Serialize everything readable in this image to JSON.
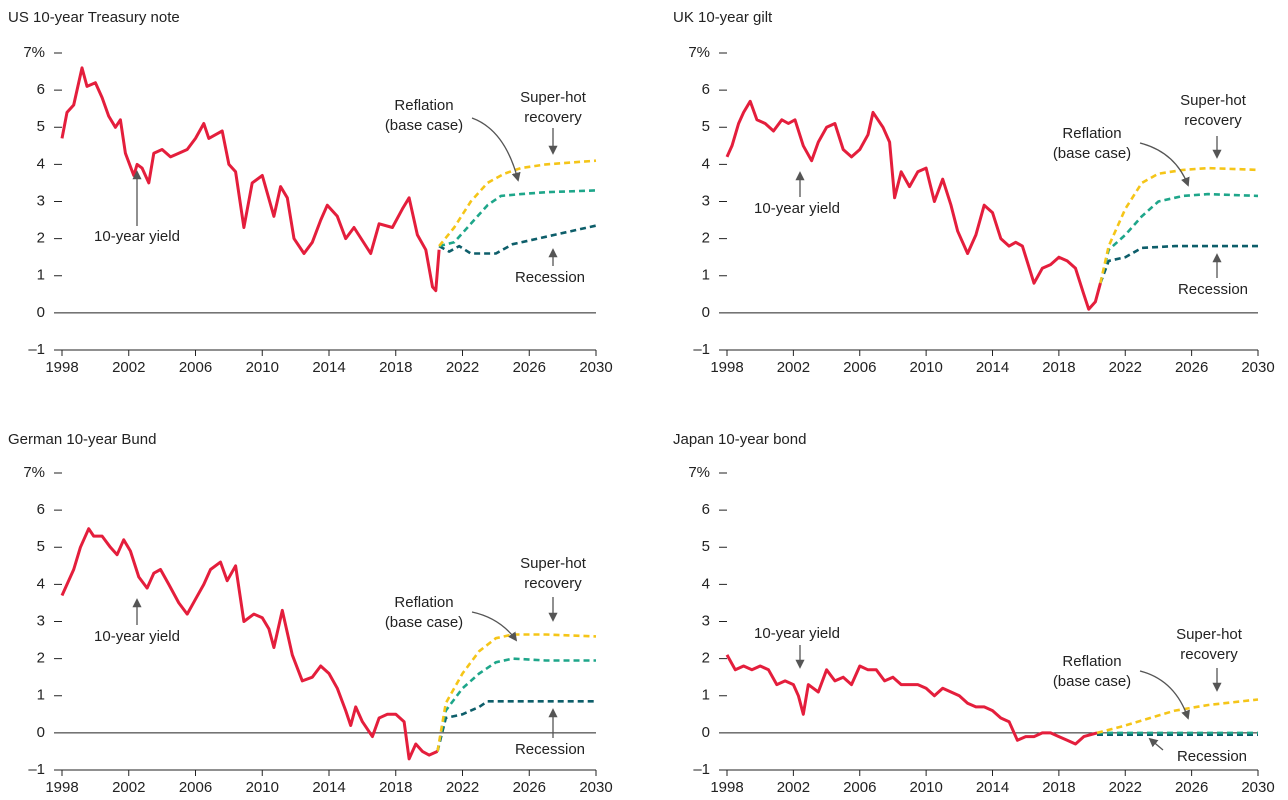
{
  "chart_data": [
    {
      "type": "line",
      "title": "US 10-year Treasury note",
      "xlim": [
        1998,
        2030
      ],
      "xticks": [
        1998,
        2002,
        2006,
        2010,
        2014,
        2018,
        2022,
        2026,
        2030
      ],
      "ylim": [
        -1,
        7
      ],
      "yticks": [
        {
          "value": -1,
          "label": "–1"
        },
        0,
        1,
        2,
        3,
        4,
        5,
        6,
        {
          "value": 7,
          "label": "7%"
        }
      ],
      "series": [
        {
          "color": "#e41e3c",
          "dashed": false,
          "x": [
            1998,
            1998.3,
            1998.7,
            1999.2,
            1999.5,
            2000,
            2000.4,
            2000.8,
            2001.2,
            2001.5,
            2001.8,
            2002.3,
            2002.5,
            2002.8,
            2003.2,
            2003.5,
            2004,
            2004.5,
            2005,
            2005.5,
            2006,
            2006.5,
            2006.8,
            2007.2,
            2007.6,
            2008,
            2008.4,
            2008.9,
            2009.4,
            2010,
            2010.7,
            2011.1,
            2011.5,
            2011.9,
            2012.5,
            2013,
            2013.5,
            2013.9,
            2014.5,
            2015,
            2015.5,
            2016.5,
            2017,
            2017.8,
            2018.4,
            2018.8,
            2019.3,
            2019.8,
            2020.2,
            2020.4,
            2020.6
          ],
          "values": [
            4.7,
            5.4,
            5.6,
            6.6,
            6.1,
            6.2,
            5.8,
            5.3,
            5.0,
            5.2,
            4.3,
            3.7,
            4.0,
            3.9,
            3.5,
            4.3,
            4.4,
            4.2,
            4.3,
            4.4,
            4.7,
            5.1,
            4.7,
            4.8,
            4.9,
            4.0,
            3.8,
            2.3,
            3.5,
            3.7,
            2.6,
            3.4,
            3.1,
            2.0,
            1.6,
            1.9,
            2.5,
            2.9,
            2.6,
            2.0,
            2.3,
            1.6,
            2.4,
            2.3,
            2.8,
            3.1,
            2.1,
            1.7,
            0.7,
            0.6,
            1.7
          ]
        },
        {
          "color": "#f5c518",
          "dashed": true,
          "x": [
            2020.6,
            2021.5,
            2022.5,
            2023.5,
            2024.5,
            2025.5,
            2027,
            2028.5,
            2030
          ],
          "values": [
            1.8,
            2.3,
            3.0,
            3.5,
            3.75,
            3.9,
            4.0,
            4.05,
            4.1
          ]
        },
        {
          "color": "#1ea68a",
          "dashed": true,
          "x": [
            2020.6,
            2021.5,
            2022.5,
            2023.5,
            2024.3,
            2025.5,
            2027,
            2030
          ],
          "values": [
            1.8,
            1.9,
            2.4,
            2.9,
            3.15,
            3.2,
            3.25,
            3.3
          ]
        },
        {
          "color": "#0d5e6a",
          "dashed": true,
          "x": [
            2020.6,
            2021.2,
            2021.8,
            2022.5,
            2024,
            2025,
            2026,
            2027.5,
            2030
          ],
          "values": [
            1.8,
            1.65,
            1.8,
            1.6,
            1.6,
            1.85,
            1.95,
            2.1,
            2.35
          ]
        }
      ],
      "annotations": [
        [
          "10-year yield"
        ],
        [
          "Reflation",
          "(base case)"
        ],
        [
          "Super-hot",
          "recovery"
        ],
        [
          "Recession"
        ]
      ]
    },
    {
      "type": "line",
      "title": "UK 10-year gilt",
      "xlim": [
        1998,
        2030
      ],
      "xticks": [
        1998,
        2002,
        2006,
        2010,
        2014,
        2018,
        2022,
        2026,
        2030
      ],
      "ylim": [
        -1,
        7
      ],
      "yticks": [
        {
          "value": -1,
          "label": "–1"
        },
        0,
        1,
        2,
        3,
        4,
        5,
        6,
        {
          "value": 7,
          "label": "7%"
        }
      ],
      "series": [
        {
          "color": "#e41e3c",
          "dashed": false,
          "x": [
            1998,
            1998.3,
            1998.7,
            1999,
            1999.4,
            1999.8,
            2000.3,
            2000.8,
            2001.3,
            2001.7,
            2002.1,
            2002.6,
            2003.1,
            2003.5,
            2004,
            2004.5,
            2005,
            2005.5,
            2006,
            2006.5,
            2006.8,
            2007.4,
            2007.8,
            2008.1,
            2008.5,
            2009,
            2009.5,
            2010,
            2010.5,
            2011,
            2011.5,
            2011.9,
            2012.5,
            2013,
            2013.5,
            2014,
            2014.5,
            2015,
            2015.4,
            2015.8,
            2016.5,
            2017,
            2017.5,
            2018,
            2018.5,
            2019,
            2019.5,
            2019.8,
            2020.2,
            2020.5
          ],
          "values": [
            4.2,
            4.5,
            5.1,
            5.4,
            5.7,
            5.2,
            5.1,
            4.9,
            5.2,
            5.1,
            5.2,
            4.5,
            4.1,
            4.6,
            5.0,
            5.1,
            4.4,
            4.2,
            4.4,
            4.8,
            5.4,
            5.0,
            4.6,
            3.1,
            3.8,
            3.4,
            3.8,
            3.9,
            3.0,
            3.6,
            2.9,
            2.2,
            1.6,
            2.1,
            2.9,
            2.7,
            2.0,
            1.8,
            1.9,
            1.8,
            0.8,
            1.2,
            1.3,
            1.5,
            1.4,
            1.2,
            0.5,
            0.1,
            0.3,
            0.8
          ]
        },
        {
          "color": "#f5c518",
          "dashed": true,
          "x": [
            2020.5,
            2021,
            2022,
            2023,
            2024,
            2025.5,
            2027,
            2030
          ],
          "values": [
            0.8,
            1.8,
            2.8,
            3.5,
            3.75,
            3.85,
            3.9,
            3.85
          ]
        },
        {
          "color": "#1ea68a",
          "dashed": true,
          "x": [
            2020.5,
            2021,
            2022,
            2023,
            2024,
            2025.5,
            2027,
            2030
          ],
          "values": [
            0.8,
            1.7,
            2.1,
            2.6,
            3.0,
            3.15,
            3.2,
            3.15
          ]
        },
        {
          "color": "#0d5e6a",
          "dashed": true,
          "x": [
            2020.5,
            2021,
            2022,
            2023,
            2025,
            2030
          ],
          "values": [
            0.8,
            1.4,
            1.5,
            1.75,
            1.8,
            1.8
          ]
        }
      ],
      "annotations": [
        [
          "10-year yield"
        ],
        [
          "Reflation",
          "(base case)"
        ],
        [
          "Super-hot",
          "recovery"
        ],
        [
          "Recession"
        ]
      ]
    },
    {
      "type": "line",
      "title": "German 10-year Bund",
      "xlim": [
        1998,
        2030
      ],
      "xticks": [
        1998,
        2002,
        2006,
        2010,
        2014,
        2018,
        2022,
        2026,
        2030
      ],
      "ylim": [
        -1,
        7
      ],
      "yticks": [
        {
          "value": -1,
          "label": "–1"
        },
        0,
        1,
        2,
        3,
        4,
        5,
        6,
        {
          "value": 7,
          "label": "7%"
        }
      ],
      "series": [
        {
          "color": "#e41e3c",
          "dashed": false,
          "x": [
            1998,
            1998.3,
            1998.7,
            1999.1,
            1999.6,
            1999.9,
            2000.4,
            2000.9,
            2001.3,
            2001.7,
            2002.1,
            2002.6,
            2003.1,
            2003.5,
            2003.9,
            2004.4,
            2005,
            2005.5,
            2006,
            2006.5,
            2006.9,
            2007.5,
            2007.9,
            2008.4,
            2008.9,
            2009.5,
            2010,
            2010.4,
            2010.7,
            2011.2,
            2011.8,
            2012.4,
            2013,
            2013.5,
            2014,
            2014.5,
            2015,
            2015.3,
            2015.6,
            2016,
            2016.6,
            2017,
            2017.5,
            2018,
            2018.5,
            2018.8,
            2019.2,
            2019.6,
            2020,
            2020.5
          ],
          "values": [
            3.7,
            4.0,
            4.4,
            5.0,
            5.5,
            5.3,
            5.3,
            5.0,
            4.8,
            5.2,
            4.9,
            4.2,
            3.9,
            4.3,
            4.4,
            4.0,
            3.5,
            3.2,
            3.6,
            4.0,
            4.4,
            4.6,
            4.1,
            4.5,
            3.0,
            3.2,
            3.1,
            2.8,
            2.3,
            3.3,
            2.1,
            1.4,
            1.5,
            1.8,
            1.6,
            1.2,
            0.6,
            0.2,
            0.7,
            0.3,
            -0.1,
            0.4,
            0.5,
            0.5,
            0.3,
            -0.7,
            -0.3,
            -0.5,
            -0.6,
            -0.5
          ]
        },
        {
          "color": "#f5c518",
          "dashed": true,
          "x": [
            2020.5,
            2021,
            2022,
            2023,
            2024,
            2025,
            2027,
            2030
          ],
          "values": [
            -0.5,
            0.8,
            1.6,
            2.2,
            2.55,
            2.65,
            2.65,
            2.6
          ]
        },
        {
          "color": "#1ea68a",
          "dashed": true,
          "x": [
            2020.5,
            2021,
            2022,
            2023,
            2024,
            2025,
            2027,
            2030
          ],
          "values": [
            -0.5,
            0.6,
            1.2,
            1.6,
            1.9,
            2.0,
            1.95,
            1.95
          ]
        },
        {
          "color": "#0d5e6a",
          "dashed": true,
          "x": [
            2020.5,
            2021,
            2022,
            2023,
            2023.5,
            2030
          ],
          "values": [
            -0.5,
            0.4,
            0.5,
            0.7,
            0.85,
            0.85
          ]
        }
      ],
      "annotations": [
        [
          "10-year yield"
        ],
        [
          "Reflation",
          "(base case)"
        ],
        [
          "Super-hot",
          "recovery"
        ],
        [
          "Recession"
        ]
      ]
    },
    {
      "type": "line",
      "title": "Japan 10-year bond",
      "xlim": [
        1998,
        2030
      ],
      "xticks": [
        1998,
        2002,
        2006,
        2010,
        2014,
        2018,
        2022,
        2026,
        2030
      ],
      "ylim": [
        -1,
        7
      ],
      "yticks": [
        {
          "value": -1,
          "label": "–1"
        },
        0,
        1,
        2,
        3,
        4,
        5,
        6,
        {
          "value": 7,
          "label": "7%"
        }
      ],
      "series": [
        {
          "color": "#e41e3c",
          "dashed": false,
          "x": [
            1998,
            1998.5,
            1999,
            1999.5,
            2000,
            2000.5,
            2001,
            2001.5,
            2002,
            2002.3,
            2002.6,
            2002.9,
            2003.5,
            2004,
            2004.5,
            2005,
            2005.5,
            2006,
            2006.5,
            2007,
            2007.5,
            2008,
            2008.5,
            2009,
            2009.5,
            2010,
            2010.5,
            2011,
            2011.5,
            2012,
            2012.5,
            2013,
            2013.5,
            2014,
            2014.5,
            2015,
            2015.5,
            2016,
            2016.5,
            2017,
            2017.5,
            2018,
            2018.5,
            2019,
            2019.5,
            2020.3
          ],
          "values": [
            2.1,
            1.7,
            1.8,
            1.7,
            1.8,
            1.7,
            1.3,
            1.4,
            1.3,
            1.0,
            0.5,
            1.3,
            1.1,
            1.7,
            1.4,
            1.5,
            1.3,
            1.8,
            1.7,
            1.7,
            1.4,
            1.5,
            1.3,
            1.3,
            1.3,
            1.2,
            1.0,
            1.2,
            1.1,
            1.0,
            0.8,
            0.7,
            0.7,
            0.6,
            0.4,
            0.3,
            -0.2,
            -0.1,
            -0.1,
            0.0,
            0.0,
            -0.1,
            -0.2,
            -0.3,
            -0.1,
            0.0
          ]
        },
        {
          "color": "#f5c518",
          "dashed": true,
          "x": [
            2020.3,
            2022,
            2023.5,
            2025,
            2027,
            2030
          ],
          "values": [
            0.0,
            0.2,
            0.4,
            0.6,
            0.75,
            0.9
          ]
        },
        {
          "color": "#1ea68a",
          "dashed": true,
          "x": [
            2020.3,
            2030
          ],
          "values": [
            0.0,
            0.0
          ]
        },
        {
          "color": "#0d5e6a",
          "dashed": true,
          "x": [
            2020.3,
            2030
          ],
          "values": [
            -0.05,
            -0.05
          ]
        }
      ],
      "annotations": [
        [
          "10-year yield"
        ],
        [
          "Reflation",
          "(base case)"
        ],
        [
          "Super-hot",
          "recovery"
        ],
        [
          "Recession"
        ]
      ]
    }
  ]
}
